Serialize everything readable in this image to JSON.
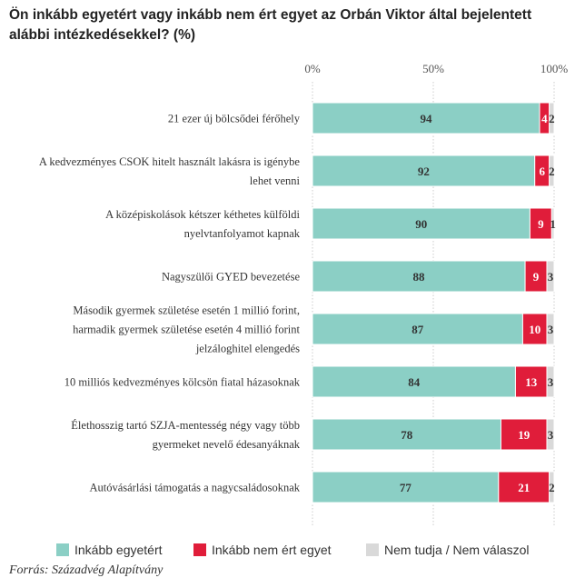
{
  "chart_data": {
    "type": "bar",
    "stacked": true,
    "orientation": "horizontal",
    "title": "Ön inkább egyetért vagy inkább nem ért egyet az Orbán Viktor által bejelentett alábbi intézkedésekkel? (%)",
    "x_ticks": [
      "0%",
      "50%",
      "100%"
    ],
    "xlim": [
      0,
      100
    ],
    "grid": true,
    "legend_position": "bottom",
    "categories": [
      [
        "21 ezer új bölcsődei férőhely"
      ],
      [
        "A kedvezményes CSOK hitelt használt lakásra is igénybe",
        "lehet venni"
      ],
      [
        "A középiskolások kétszer kéthetes külföldi",
        "nyelvtanfolyamot kapnak"
      ],
      [
        "Nagyszülői GYED bevezetése"
      ],
      [
        "Második gyermek születése esetén 1 millió forint,",
        "harmadik gyermek születése esetén 4 millió forint",
        "jelzáloghitel elengedés"
      ],
      [
        "10 milliós kedvezményes kölcsön fiatal házasoknak"
      ],
      [
        "Élethosszig tartó SZJA-mentesség négy vagy több",
        "gyermeket nevelő édesanyáknak"
      ],
      [
        "Autóvásárlási támogatás a nagycsaládosoknak"
      ]
    ],
    "series": [
      {
        "name": "Inkább egyetért",
        "color": "#8bcfc5",
        "values": [
          94,
          92,
          90,
          88,
          87,
          84,
          78,
          77
        ]
      },
      {
        "name": "Inkább nem ért egyet",
        "color": "#e01d3a",
        "values": [
          4,
          6,
          9,
          9,
          10,
          13,
          19,
          21
        ]
      },
      {
        "name": "Nem tudja / Nem válaszol",
        "color": "#d9d9d9",
        "values": [
          2,
          2,
          1,
          3,
          3,
          3,
          3,
          2
        ]
      }
    ]
  },
  "source": "Forrás: Századvég Alapítvány"
}
